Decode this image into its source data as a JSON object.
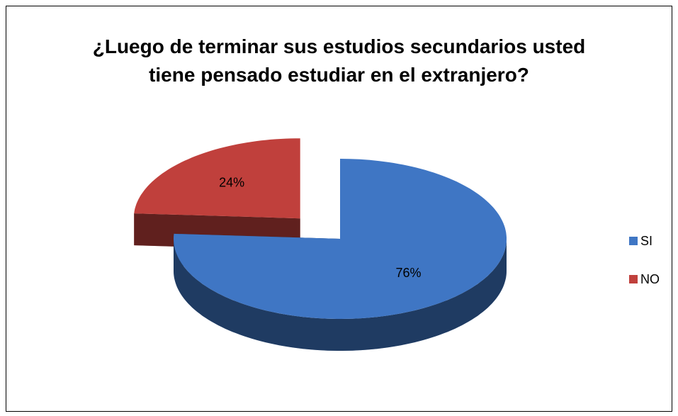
{
  "chart_data": {
    "type": "pie",
    "title": "¿Luego de terminar sus estudios secundarios usted tiene pensado estudiar en el extranjero?",
    "categories": [
      "SI",
      "NO"
    ],
    "values": [
      76,
      24
    ],
    "value_labels": [
      "76%",
      "24%"
    ],
    "colors": [
      "#3f76c4",
      "#c0403c"
    ],
    "explode": [
      0,
      0.35
    ],
    "legend": "right"
  }
}
